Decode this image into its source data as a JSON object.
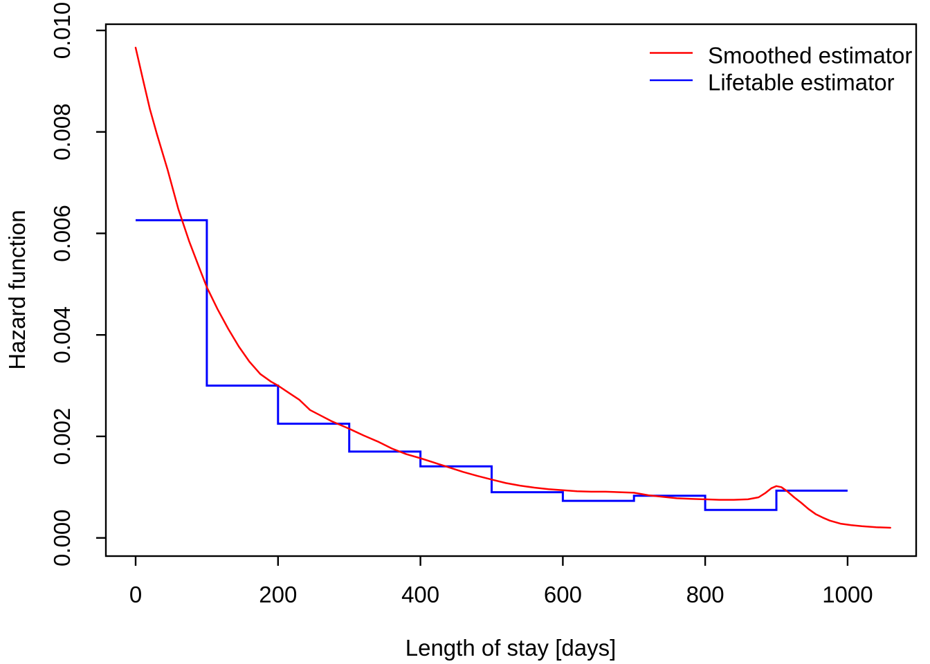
{
  "chart_data": {
    "type": "line",
    "title": "",
    "xlabel": "Length of stay [days]",
    "ylabel": "Hazard function",
    "x_ticks": [
      {
        "value": 0,
        "label": "0"
      },
      {
        "value": 200,
        "label": "200"
      },
      {
        "value": 400,
        "label": "400"
      },
      {
        "value": 600,
        "label": "600"
      },
      {
        "value": 800,
        "label": "800"
      },
      {
        "value": 1000,
        "label": "1000"
      }
    ],
    "y_ticks": [
      {
        "value": 0.0,
        "label": "0.000"
      },
      {
        "value": 0.002,
        "label": "0.002"
      },
      {
        "value": 0.004,
        "label": "0.004"
      },
      {
        "value": 0.006,
        "label": "0.006"
      },
      {
        "value": 0.008,
        "label": "0.008"
      },
      {
        "value": 0.01,
        "label": "0.010"
      }
    ],
    "xlim": [
      0,
      1060
    ],
    "ylim": [
      0,
      0.01
    ],
    "grid": false,
    "legend_position": "topright",
    "axis_color": "#000000",
    "series": [
      {
        "name": "Smoothed estimator",
        "color": "#FF0000",
        "type": "line",
        "points": [
          [
            0,
            0.00966
          ],
          [
            10,
            0.00905
          ],
          [
            20,
            0.00845
          ],
          [
            30,
            0.00795
          ],
          [
            45,
            0.00725
          ],
          [
            60,
            0.00648
          ],
          [
            75,
            0.00585
          ],
          [
            90,
            0.0053
          ],
          [
            100,
            0.00494
          ],
          [
            115,
            0.00451
          ],
          [
            130,
            0.00412
          ],
          [
            145,
            0.00377
          ],
          [
            160,
            0.00347
          ],
          [
            175,
            0.00323
          ],
          [
            190,
            0.00308
          ],
          [
            200,
            0.003
          ],
          [
            215,
            0.00286
          ],
          [
            230,
            0.00272
          ],
          [
            245,
            0.00252
          ],
          [
            260,
            0.00241
          ],
          [
            275,
            0.0023
          ],
          [
            290,
            0.00221
          ],
          [
            300,
            0.00215
          ],
          [
            320,
            0.00202
          ],
          [
            340,
            0.0019
          ],
          [
            360,
            0.00176
          ],
          [
            380,
            0.00165
          ],
          [
            400,
            0.00157
          ],
          [
            420,
            0.00148
          ],
          [
            440,
            0.00139
          ],
          [
            460,
            0.0013
          ],
          [
            480,
            0.00122
          ],
          [
            500,
            0.00115
          ],
          [
            520,
            0.00108
          ],
          [
            540,
            0.00103
          ],
          [
            560,
            0.00099
          ],
          [
            580,
            0.00096
          ],
          [
            600,
            0.00094
          ],
          [
            620,
            0.00092
          ],
          [
            640,
            0.00091
          ],
          [
            660,
            0.00091
          ],
          [
            680,
            0.0009
          ],
          [
            700,
            0.00089
          ],
          [
            720,
            0.00084
          ],
          [
            740,
            0.00081
          ],
          [
            760,
            0.00078
          ],
          [
            780,
            0.00077
          ],
          [
            800,
            0.00076
          ],
          [
            820,
            0.00075
          ],
          [
            840,
            0.00075
          ],
          [
            860,
            0.00076
          ],
          [
            875,
            0.0008
          ],
          [
            885,
            0.00089
          ],
          [
            893,
            0.00098
          ],
          [
            900,
            0.00102
          ],
          [
            907,
            0.001
          ],
          [
            915,
            0.00092
          ],
          [
            925,
            0.0008
          ],
          [
            935,
            0.00069
          ],
          [
            945,
            0.00057
          ],
          [
            955,
            0.00047
          ],
          [
            965,
            0.0004
          ],
          [
            975,
            0.00034
          ],
          [
            990,
            0.00028
          ],
          [
            1005,
            0.00025
          ],
          [
            1020,
            0.00023
          ],
          [
            1040,
            0.00021
          ],
          [
            1060,
            0.0002
          ]
        ]
      },
      {
        "name": "Lifetable estimator",
        "color": "#0000FF",
        "type": "step",
        "intervals": [
          {
            "from": 0,
            "to": 100,
            "value": 0.00626
          },
          {
            "from": 100,
            "to": 200,
            "value": 0.003
          },
          {
            "from": 200,
            "to": 300,
            "value": 0.00225
          },
          {
            "from": 300,
            "to": 400,
            "value": 0.0017
          },
          {
            "from": 400,
            "to": 500,
            "value": 0.00141
          },
          {
            "from": 500,
            "to": 600,
            "value": 0.0009
          },
          {
            "from": 600,
            "to": 700,
            "value": 0.00073
          },
          {
            "from": 700,
            "to": 800,
            "value": 0.00083
          },
          {
            "from": 800,
            "to": 900,
            "value": 0.00055
          },
          {
            "from": 900,
            "to": 1000,
            "value": 0.00093
          }
        ]
      }
    ]
  }
}
